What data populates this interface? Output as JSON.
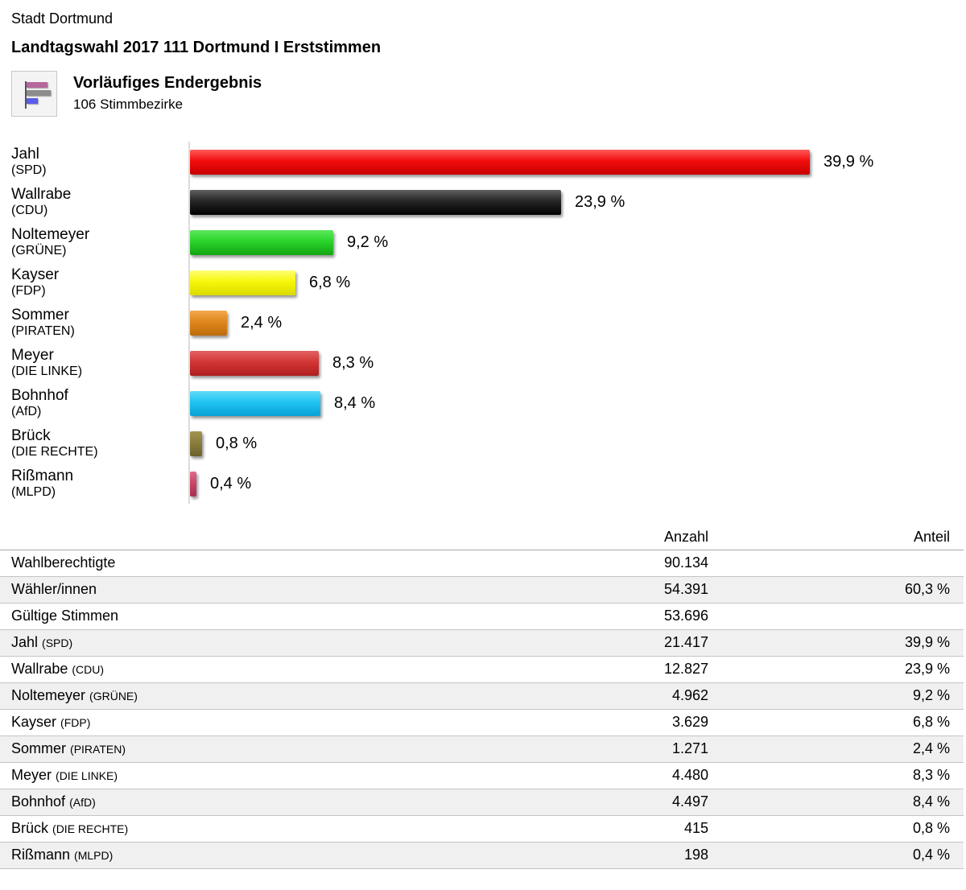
{
  "header": {
    "organization": "Stadt Dortmund",
    "title": "Landtagswahl 2017 111 Dortmund I Erststimmen",
    "status": "Vorläufiges Endergebnis",
    "districts": "106 Stimmbezirke",
    "icon": {
      "name": "bar-chart-icon",
      "background": "#f4f4f4",
      "border_color": "#c8c8c8",
      "axis_color": "#555555",
      "bars": [
        {
          "color": "#b5689c",
          "width": 26
        },
        {
          "color": "#8c8c8c",
          "width": 30
        },
        {
          "color": "#5a5cea",
          "width": 14
        }
      ]
    }
  },
  "chart_data": {
    "type": "bar",
    "orientation": "horizontal",
    "title": "Vorläufiges Endergebnis",
    "subtitle": "106 Stimmbezirke",
    "value_unit": "%",
    "xlim": [
      0,
      41.5
    ],
    "grid": false,
    "legend": false,
    "axis_color": "#dcdcdc",
    "bars": [
      {
        "candidate": "Jahl",
        "party": "SPD",
        "percent": 39.9,
        "label": "39,9 %",
        "color": "#f20d0d",
        "color_light": "#ff5a5a",
        "color_dark": "#c80000"
      },
      {
        "candidate": "Wallrabe",
        "party": "CDU",
        "percent": 23.9,
        "label": "23,9 %",
        "color": "#262626",
        "color_light": "#606060",
        "color_dark": "#000000"
      },
      {
        "candidate": "Noltemeyer",
        "party": "GRÜNE",
        "percent": 9.2,
        "label": "9,2 %",
        "color": "#2bd42b",
        "color_light": "#5ce85c",
        "color_dark": "#12a412"
      },
      {
        "candidate": "Kayser",
        "party": "FDP",
        "percent": 6.8,
        "label": "6,8 %",
        "color": "#f7f70a",
        "color_light": "#ffff78",
        "color_dark": "#dadA00"
      },
      {
        "candidate": "Sommer",
        "party": "PIRATEN",
        "percent": 2.4,
        "label": "2,4 %",
        "color": "#e0861c",
        "color_light": "#f2a84e",
        "color_dark": "#bd6c0b"
      },
      {
        "candidate": "Meyer",
        "party": "DIE LINKE",
        "percent": 8.3,
        "label": "8,3 %",
        "color": "#d23535",
        "color_light": "#e36262",
        "color_dark": "#ae1f1f"
      },
      {
        "candidate": "Bohnhof",
        "party": "AfD",
        "percent": 8.4,
        "label": "8,4 %",
        "color": "#1fc4f2",
        "color_light": "#62daf8",
        "color_dark": "#09a1d5"
      },
      {
        "candidate": "Brück",
        "party": "DIE RECHTE",
        "percent": 0.8,
        "label": "0,8 %",
        "color": "#8a7d3e",
        "color_light": "#a29550",
        "color_dark": "#6c602e"
      },
      {
        "candidate": "Rißmann",
        "party": "MLPD",
        "percent": 0.4,
        "label": "0,4 %",
        "color": "#c94667",
        "color_light": "#dd6d89",
        "color_dark": "#a72f4f"
      }
    ]
  },
  "table": {
    "headers": {
      "anzahl": "Anzahl",
      "anteil": "Anteil"
    },
    "stripe_color": "#f0f0f0",
    "rows": [
      {
        "label": "Wahlberechtigte",
        "party": "",
        "anzahl": "90.134",
        "anteil": ""
      },
      {
        "label": "Wähler/innen",
        "party": "",
        "anzahl": "54.391",
        "anteil": "60,3 %"
      },
      {
        "label": "Gültige Stimmen",
        "party": "",
        "anzahl": "53.696",
        "anteil": ""
      },
      {
        "label": "Jahl",
        "party": "SPD",
        "anzahl": "21.417",
        "anteil": "39,9 %"
      },
      {
        "label": "Wallrabe",
        "party": "CDU",
        "anzahl": "12.827",
        "anteil": "23,9 %"
      },
      {
        "label": "Noltemeyer",
        "party": "GRÜNE",
        "anzahl": "4.962",
        "anteil": "9,2 %"
      },
      {
        "label": "Kayser",
        "party": "FDP",
        "anzahl": "3.629",
        "anteil": "6,8 %"
      },
      {
        "label": "Sommer",
        "party": "PIRATEN",
        "anzahl": "1.271",
        "anteil": "2,4 %"
      },
      {
        "label": "Meyer",
        "party": "DIE LINKE",
        "anzahl": "4.480",
        "anteil": "8,3 %"
      },
      {
        "label": "Bohnhof",
        "party": "AfD",
        "anzahl": "4.497",
        "anteil": "8,4 %"
      },
      {
        "label": "Brück",
        "party": "DIE RECHTE",
        "anzahl": "415",
        "anteil": "0,8 %"
      },
      {
        "label": "Rißmann",
        "party": "MLPD",
        "anzahl": "198",
        "anteil": "0,4 %"
      }
    ]
  }
}
